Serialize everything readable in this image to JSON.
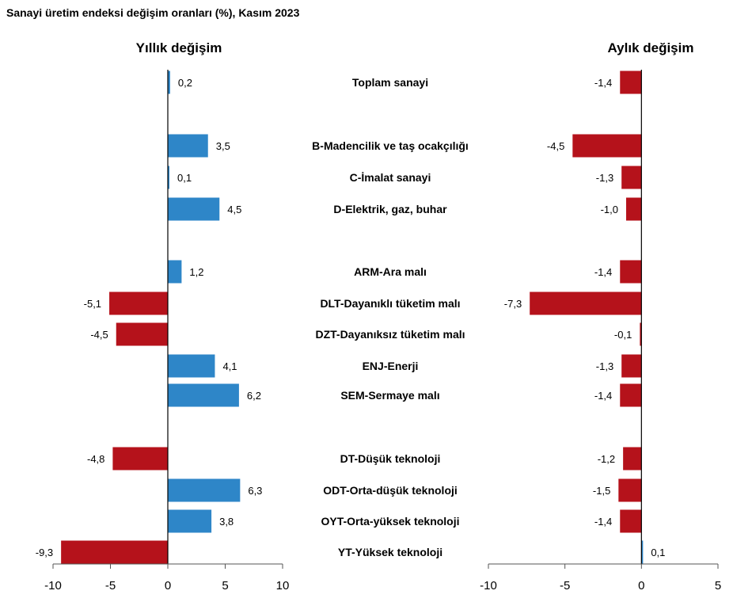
{
  "title": "Sanayi üretim endeksi değişim oranları (%), Kasım 2023",
  "chart_data": [
    {
      "type": "bar",
      "orientation": "horizontal",
      "title": "Yıllık değişim",
      "categories": [
        "Toplam sanayi",
        "B-Madencilik ve taş ocakçılığı",
        "C-İmalat sanayi",
        "D-Elektrik, gaz, buhar",
        "ARM-Ara malı",
        "DLT-Dayanıklı tüketim malı",
        "DZT-Dayanıksız tüketim malı",
        "ENJ-Enerji",
        "SEM-Sermaye malı",
        "DT-Düşük teknoloji",
        "ODT-Orta-düşük teknoloji",
        "OYT-Orta-yüksek teknoloji",
        "YT-Yüksek teknoloji"
      ],
      "values": [
        0.2,
        3.5,
        0.1,
        4.5,
        1.2,
        -5.1,
        -4.5,
        4.1,
        6.2,
        -4.8,
        6.3,
        3.8,
        -9.3
      ],
      "value_labels": [
        "0,2",
        "3,5",
        "0,1",
        "4,5",
        "1,2",
        "-5,1",
        "-4,5",
        "4,1",
        "6,2",
        "-4,8",
        "6,3",
        "3,8",
        "-9,3"
      ],
      "xlim": [
        -10,
        10
      ],
      "xticks": [
        -10,
        -5,
        0,
        5,
        10
      ],
      "xtick_labels": [
        "-10",
        "-5",
        "0",
        "5",
        "10"
      ],
      "colors": {
        "positive": "#2e86c8",
        "negative": "#b5121b"
      }
    },
    {
      "type": "bar",
      "orientation": "horizontal",
      "title": "Aylık değişim",
      "categories": [
        "Toplam sanayi",
        "B-Madencilik ve taş ocakçılığı",
        "C-İmalat sanayi",
        "D-Elektrik, gaz, buhar",
        "ARM-Ara malı",
        "DLT-Dayanıklı tüketim malı",
        "DZT-Dayanıksız tüketim malı",
        "ENJ-Enerji",
        "SEM-Sermaye malı",
        "DT-Düşük teknoloji",
        "ODT-Orta-düşük teknoloji",
        "OYT-Orta-yüksek teknoloji",
        "YT-Yüksek teknoloji"
      ],
      "values": [
        -1.4,
        -4.5,
        -1.3,
        -1.0,
        -1.4,
        -7.3,
        -0.1,
        -1.3,
        -1.4,
        -1.2,
        -1.5,
        -1.4,
        0.1
      ],
      "value_labels": [
        "-1,4",
        "-4,5",
        "-1,3",
        "-1,0",
        "-1,4",
        "-7,3",
        "-0,1",
        "-1,3",
        "-1,4",
        "-1,2",
        "-1,5",
        "-1,4",
        "0,1"
      ],
      "xlim": [
        -10,
        5
      ],
      "xticks": [
        -10,
        -5,
        0,
        5
      ],
      "xtick_labels": [
        "-10",
        "-5",
        "0",
        "5"
      ],
      "colors": {
        "positive": "#2e86c8",
        "negative": "#b5121b"
      }
    }
  ]
}
